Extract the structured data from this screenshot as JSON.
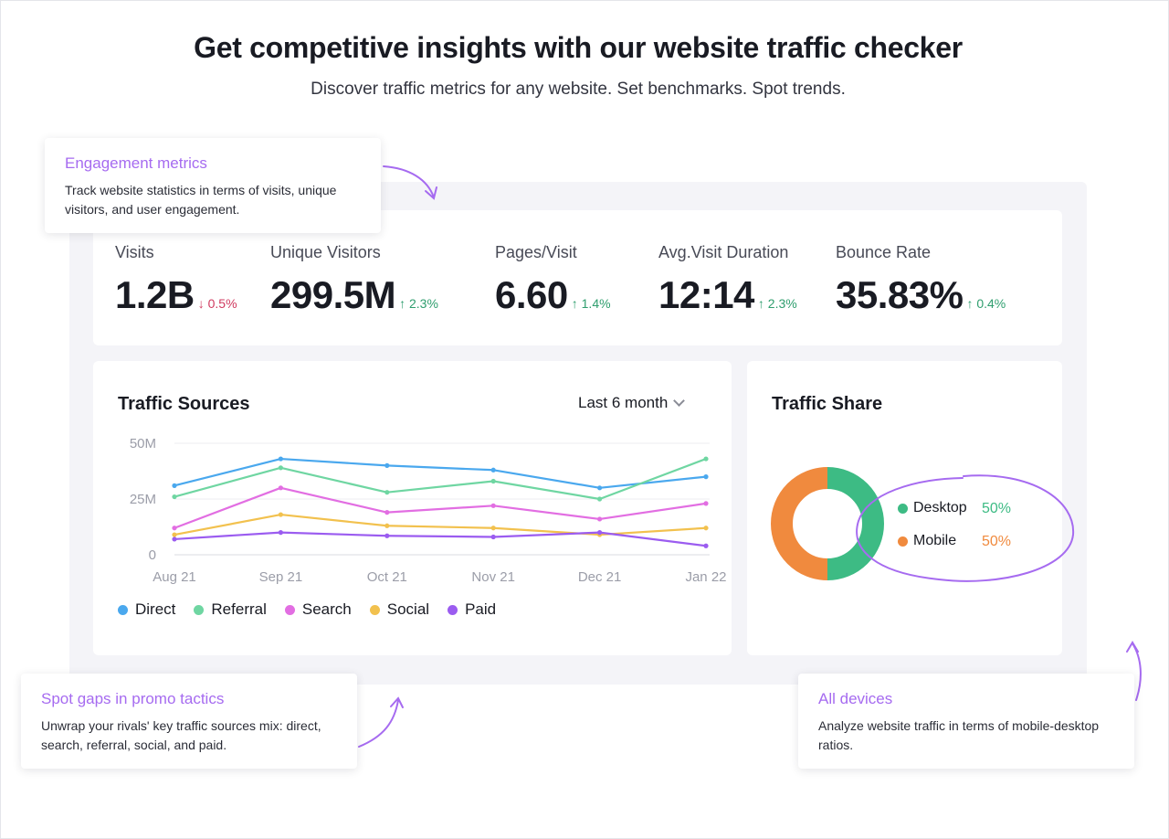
{
  "header": {
    "title": "Get competitive insights with our website traffic checker",
    "subtitle": "Discover traffic metrics for any website. Set benchmarks. Spot trends."
  },
  "metrics": [
    {
      "label": "Visits",
      "value": "1.2B",
      "change": "↓ 0.5%",
      "direction": "down"
    },
    {
      "label": "Unique Visitors",
      "value": "299.5M",
      "change": "↑ 2.3%",
      "direction": "up"
    },
    {
      "label": "Pages/Visit",
      "value": "6.60",
      "change": "↑ 1.4%",
      "direction": "up"
    },
    {
      "label": "Avg.Visit Duration",
      "value": "12:14",
      "change": "↑ 2.3%",
      "direction": "up"
    },
    {
      "label": "Bounce Rate",
      "value": "35.83%",
      "change": "↑ 0.4%",
      "direction": "up"
    }
  ],
  "traffic_sources": {
    "title": "Traffic Sources",
    "period_label": "Last 6 month",
    "legend": [
      {
        "name": "Direct",
        "color": "#4aa8ee"
      },
      {
        "name": "Referral",
        "color": "#6fd6a2"
      },
      {
        "name": "Search",
        "color": "#e26ee2"
      },
      {
        "name": "Social",
        "color": "#f2c14e"
      },
      {
        "name": "Paid",
        "color": "#9b5cf0"
      }
    ]
  },
  "traffic_share": {
    "title": "Traffic Share",
    "items": [
      {
        "label": "Desktop",
        "value": "50%",
        "color": "#3dbb84"
      },
      {
        "label": "Mobile",
        "value": "50%",
        "color": "#f08a3e"
      }
    ]
  },
  "callouts": {
    "engagement": {
      "title": "Engagement metrics",
      "text": "Track website statistics in terms of visits, unique visitors, and user engagement."
    },
    "promo": {
      "title": "Spot gaps in promo tactics",
      "text": "Unwrap your rivals' key traffic sources mix: direct, search, referral, social, and paid."
    },
    "devices": {
      "title": "All devices",
      "text": "Analyze website traffic in terms of mobile-desktop ratios."
    }
  },
  "accent_color": "#a66bf0",
  "chart_data": [
    {
      "type": "line",
      "title": "Traffic Sources",
      "x": [
        "Aug 21",
        "Sep 21",
        "Oct 21",
        "Nov 21",
        "Dec 21",
        "Jan 22"
      ],
      "y_tick_labels": [
        "50M",
        "25M",
        "0"
      ],
      "ylim": [
        0,
        50000000
      ],
      "grid": true,
      "legend_position": "bottom",
      "series": [
        {
          "name": "Direct",
          "color": "#4aa8ee",
          "values": [
            31000000,
            43000000,
            40000000,
            38000000,
            30000000,
            35000000
          ]
        },
        {
          "name": "Referral",
          "color": "#6fd6a2",
          "values": [
            26000000,
            39000000,
            28000000,
            33000000,
            25000000,
            43000000
          ]
        },
        {
          "name": "Search",
          "color": "#e26ee2",
          "values": [
            12000000,
            30000000,
            19000000,
            22000000,
            16000000,
            23000000
          ]
        },
        {
          "name": "Social",
          "color": "#f2c14e",
          "values": [
            9000000,
            18000000,
            13000000,
            12000000,
            9000000,
            12000000
          ]
        },
        {
          "name": "Paid",
          "color": "#9b5cf0",
          "values": [
            7000000,
            10000000,
            8500000,
            8000000,
            10000000,
            4000000
          ]
        }
      ]
    },
    {
      "type": "pie",
      "title": "Traffic Share",
      "categories": [
        "Desktop",
        "Mobile"
      ],
      "values": [
        50,
        50
      ],
      "colors": [
        "#3dbb84",
        "#f08a3e"
      ],
      "legend_position": "right"
    }
  ]
}
